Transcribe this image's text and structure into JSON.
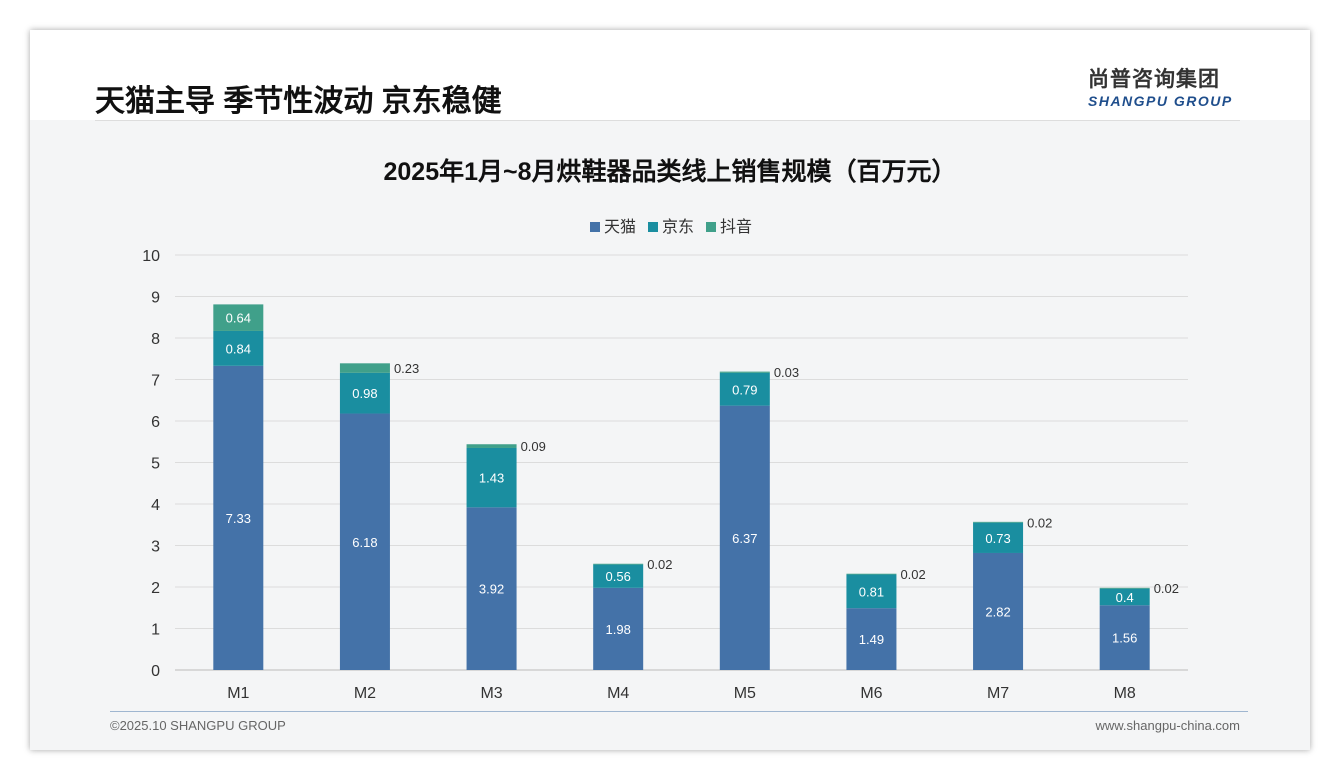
{
  "header": {
    "title": "天猫主导 季节性波动 京东稳健",
    "logo_cn": "尚普咨询集团",
    "logo_en": "SHANGPU GROUP"
  },
  "footer": {
    "copyright": "©2025.10 SHANGPU GROUP",
    "website": "www.shangpu-china.com"
  },
  "chart_data": {
    "type": "bar",
    "stacked": true,
    "title": "2025年1月~8月烘鞋器品类线上销售规模（百万元）",
    "categories": [
      "M1",
      "M2",
      "M3",
      "M4",
      "M5",
      "M6",
      "M7",
      "M8"
    ],
    "series": [
      {
        "name": "天猫",
        "color": "#4472a8",
        "values": [
          7.33,
          6.18,
          3.92,
          1.98,
          6.37,
          1.49,
          2.82,
          1.56
        ]
      },
      {
        "name": "京东",
        "color": "#1a8ea0",
        "values": [
          0.84,
          0.98,
          1.43,
          0.56,
          0.79,
          0.81,
          0.73,
          0.4
        ]
      },
      {
        "name": "抖音",
        "color": "#40a08a",
        "values": [
          0.64,
          0.23,
          0.09,
          0.02,
          0.03,
          0.02,
          0.02,
          0.02
        ]
      }
    ],
    "ylim": [
      0,
      10
    ],
    "yticks": [
      "0",
      "1",
      "2",
      "3",
      "4",
      "5",
      "6",
      "7",
      "8",
      "9",
      "10"
    ],
    "grid": true,
    "legend": "top-center"
  }
}
